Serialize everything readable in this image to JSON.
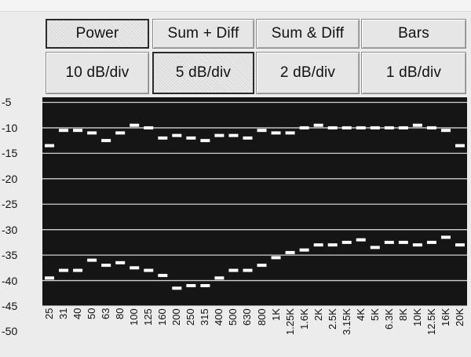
{
  "mode_buttons": [
    {
      "label": "Power",
      "selected": true
    },
    {
      "label": "Sum + Diff",
      "selected": false
    },
    {
      "label": "Sum & Diff",
      "selected": false
    },
    {
      "label": "Bars",
      "selected": false
    }
  ],
  "scale_buttons": [
    {
      "label": "10 dB/div",
      "selected": false
    },
    {
      "label": "5 dB/div",
      "selected": true
    },
    {
      "label": "2 dB/div",
      "selected": false
    },
    {
      "label": "1 dB/div",
      "selected": false
    }
  ],
  "colors": {
    "plot_background": "#151515",
    "grid_line": "#d0d0d0",
    "marker": "#ffffff"
  },
  "chart_data": {
    "type": "scatter",
    "y_tick_labels": [
      "-5",
      "-10",
      "-15",
      "-20",
      "-25",
      "-30",
      "-35",
      "-40",
      "-45",
      "-50"
    ],
    "ylim": [
      -45,
      -4
    ],
    "grid": true,
    "categories": [
      "25",
      "31",
      "40",
      "50",
      "63",
      "80",
      "100",
      "125",
      "160",
      "200",
      "250",
      "315",
      "400",
      "500",
      "630",
      "800",
      "1K",
      "1.25K",
      "1.6K",
      "2K",
      "2.5K",
      "3.15K",
      "4K",
      "5K",
      "6.3K",
      "8K",
      "10K",
      "12.5K",
      "16K",
      "20K"
    ],
    "series": [
      {
        "values": [
          -13.5,
          -10.5,
          -10.5,
          -11,
          -12.5,
          -11,
          -9.5,
          -10,
          -12,
          -11.5,
          -12,
          -12.5,
          -11.5,
          -11.5,
          -12,
          -10.5,
          -11,
          -11,
          -10,
          -9.5,
          -10,
          -10,
          -10,
          -10,
          -10,
          -10,
          -9.5,
          -10,
          -10.5,
          -13.5
        ]
      },
      {
        "values": [
          -39.5,
          -38,
          -38,
          -36,
          -37,
          -36.5,
          -37.5,
          -38,
          -39,
          -41.5,
          -41,
          -41,
          -39.5,
          -38,
          -38,
          -37,
          -35.5,
          -34.5,
          -34,
          -33,
          -33,
          -32.5,
          -32,
          -33.5,
          -32.5,
          -32.5,
          -33,
          -32.5,
          -31.5,
          -33
        ]
      }
    ]
  }
}
